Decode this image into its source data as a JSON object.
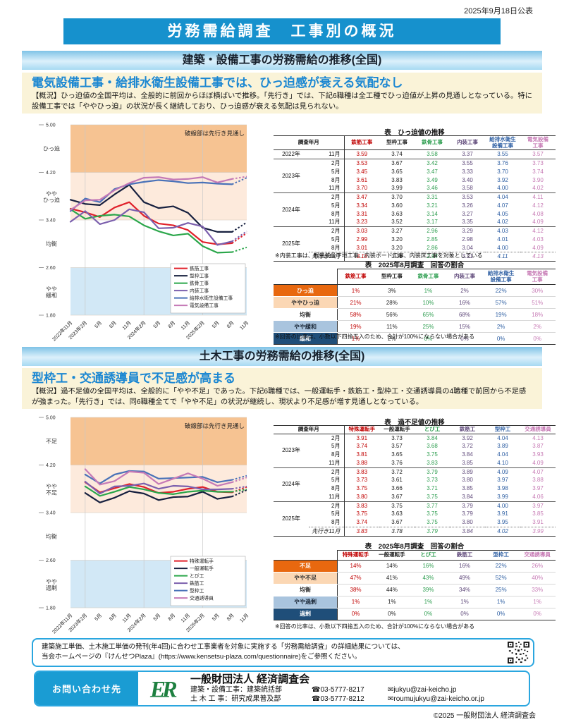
{
  "page": {
    "date_published": "2025年9月18日公表",
    "main_title": "労務需給調査　工事別の概況",
    "copyright": "©2025 一般財団法人 経済調査会"
  },
  "section1": {
    "band_title": "建築・設備工事の労務需給の推移(全国)",
    "headline": "電気設備工事・給排水衛生設備工事では、ひっ迫感が衰える気配なし",
    "overview": "【概況】ひっ迫値の全国平均は、全般的に前回からほぼ横ばいで推移。「先行き」では、下記6職種は全工種でひっ迫値が上昇の見通しとなっている。特に設備工事では「ややひっ迫」の状況が長く継続しており、ひっ迫感が衰える気配は見られない。",
    "columns": [
      {
        "label": "鉄筋工事",
        "color": "#c00000"
      },
      {
        "label": "型枠工事",
        "color": "#222222"
      },
      {
        "label": "鉄骨工事",
        "color": "#2e9e50"
      },
      {
        "label": "内装工事",
        "color": "#5f497a"
      },
      {
        "label": "給排水衛生\n設備工事",
        "color": "#2e5fa3"
      },
      {
        "label": "電気設備\n工事",
        "color": "#c77bb5"
      }
    ],
    "trend_table": {
      "title": "表　ひっ迫値の推移",
      "header_left": "調査年月",
      "groups": [
        {
          "year": "2022年",
          "rows": [
            {
              "month": "11月",
              "values": [
                "3.59",
                "3.74",
                "3.58",
                "3.37",
                "3.55",
                "3.57"
              ]
            }
          ]
        },
        {
          "year": "2023年",
          "rows": [
            {
              "month": "2月",
              "values": [
                "3.53",
                "3.67",
                "3.42",
                "3.55",
                "3.76",
                "3.73"
              ]
            },
            {
              "month": "5月",
              "values": [
                "3.45",
                "3.65",
                "3.47",
                "3.33",
                "3.70",
                "3.74"
              ]
            },
            {
              "month": "8月",
              "values": [
                "3.61",
                "3.83",
                "3.49",
                "3.40",
                "3.92",
                "3.90"
              ]
            },
            {
              "month": "11月",
              "values": [
                "3.70",
                "3.99",
                "3.46",
                "3.58",
                "4.00",
                "4.02"
              ]
            }
          ]
        },
        {
          "year": "2024年",
          "rows": [
            {
              "month": "2月",
              "values": [
                "3.47",
                "3.70",
                "3.31",
                "3.53",
                "4.04",
                "4.11"
              ]
            },
            {
              "month": "5月",
              "values": [
                "3.34",
                "3.60",
                "3.21",
                "3.26",
                "4.07",
                "4.12"
              ]
            },
            {
              "month": "8月",
              "values": [
                "3.31",
                "3.63",
                "3.14",
                "3.27",
                "4.05",
                "4.08"
              ]
            },
            {
              "month": "11月",
              "values": [
                "3.23",
                "3.52",
                "3.17",
                "3.35",
                "4.02",
                "4.09"
              ]
            }
          ]
        },
        {
          "year": "2025年",
          "rows": [
            {
              "month": "2月",
              "values": [
                "3.03",
                "3.27",
                "2.96",
                "3.29",
                "4.03",
                "4.12"
              ]
            },
            {
              "month": "5月",
              "values": [
                "2.99",
                "3.20",
                "2.85",
                "2.98",
                "4.01",
                "4.03"
              ]
            },
            {
              "month": "8月",
              "values": [
                "3.01",
                "3.20",
                "2.86",
                "3.04",
                "4.00",
                "4.09"
              ]
            },
            {
              "month": "先行き11月",
              "forecast": true,
              "values": [
                "3.18",
                "3.36",
                "2.94",
                "3.21",
                "4.11",
                "4.13"
              ]
            }
          ]
        }
      ]
    },
    "trend_note": "※内装工事は、軽量鉄骨下地工事、内装ボード工事、内装床工事を対象としている",
    "share_table": {
      "title": "表　2025年8月調査　回答の割合",
      "rows": [
        {
          "label": "ひっ迫",
          "tone": "hot",
          "values": [
            "1%",
            "3%",
            "1%",
            "2%",
            "22%",
            "30%"
          ]
        },
        {
          "label": "ややひっ迫",
          "tone": "warm",
          "values": [
            "21%",
            "28%",
            "10%",
            "16%",
            "57%",
            "51%"
          ]
        },
        {
          "label": "均衡",
          "tone": "neutral",
          "values": [
            "58%",
            "56%",
            "65%",
            "68%",
            "19%",
            "18%"
          ]
        },
        {
          "label": "やや緩和",
          "tone": "cool",
          "values": [
            "19%",
            "11%",
            "25%",
            "15%",
            "2%",
            "2%"
          ]
        },
        {
          "label": "緩和",
          "tone": "cold",
          "values": [
            "1%",
            "2%",
            "0%",
            "0%",
            "0%",
            "0%"
          ]
        }
      ]
    },
    "share_note": "※回答の比率は、小数以下四捨五入のため、合計が100%にならない場合がある"
  },
  "section2": {
    "band_title": "土木工事の労務需給の推移(全国)",
    "headline": "型枠工・交通誘導員で不足感が高まる",
    "overview": "【概況】過不足値の全国平均は、全般的に「やや不足」であった。下記6職種では、一般運転手・鉄筋工・型枠工・交通誘導員の4職種で前回から不足感が強まった。「先行き」では、同6職種全てで「やや不足」の状況が継続し、現状より不足感が増す見通しとなっている。",
    "columns": [
      {
        "label": "特殊運転手",
        "color": "#c00000"
      },
      {
        "label": "一般運転手",
        "color": "#222222"
      },
      {
        "label": "とび工",
        "color": "#2e9e50"
      },
      {
        "label": "鉄筋工",
        "color": "#5f497a"
      },
      {
        "label": "型枠工",
        "color": "#2e5fa3"
      },
      {
        "label": "交通誘導員",
        "color": "#c77bb5"
      }
    ],
    "trend_table": {
      "title": "表　過不足値の推移",
      "header_left": "調査年月",
      "groups": [
        {
          "year": "2023年",
          "rows": [
            {
              "month": "2月",
              "values": [
                "3.91",
                "3.73",
                "3.84",
                "3.92",
                "4.04",
                "4.13"
              ]
            },
            {
              "month": "5月",
              "values": [
                "3.74",
                "3.57",
                "3.68",
                "3.72",
                "3.89",
                "3.87"
              ]
            },
            {
              "month": "8月",
              "values": [
                "3.81",
                "3.65",
                "3.75",
                "3.84",
                "4.04",
                "3.93"
              ]
            },
            {
              "month": "11月",
              "values": [
                "3.88",
                "3.76",
                "3.83",
                "3.85",
                "4.10",
                "4.09"
              ]
            }
          ]
        },
        {
          "year": "2024年",
          "rows": [
            {
              "month": "2月",
              "values": [
                "3.83",
                "3.72",
                "3.79",
                "3.89",
                "4.09",
                "4.07"
              ]
            },
            {
              "month": "5月",
              "values": [
                "3.73",
                "3.61",
                "3.73",
                "3.80",
                "3.97",
                "3.88"
              ]
            },
            {
              "month": "8月",
              "values": [
                "3.75",
                "3.66",
                "3.71",
                "3.85",
                "3.98",
                "3.97"
              ]
            },
            {
              "month": "11月",
              "values": [
                "3.80",
                "3.67",
                "3.75",
                "3.84",
                "3.99",
                "4.06"
              ]
            }
          ]
        },
        {
          "year": "2025年",
          "rows": [
            {
              "month": "2月",
              "values": [
                "3.83",
                "3.75",
                "3.77",
                "3.79",
                "4.00",
                "3.97"
              ]
            },
            {
              "month": "5月",
              "values": [
                "3.75",
                "3.63",
                "3.75",
                "3.79",
                "3.91",
                "3.85"
              ]
            },
            {
              "month": "8月",
              "values": [
                "3.74",
                "3.67",
                "3.75",
                "3.80",
                "3.95",
                "3.91"
              ]
            },
            {
              "month": "先行き11月",
              "forecast": true,
              "values": [
                "3.83",
                "3.78",
                "3.79",
                "3.84",
                "4.02",
                "3.99"
              ]
            }
          ]
        }
      ]
    },
    "share_table": {
      "title": "表　2025年8月調査　回答の割合",
      "rows": [
        {
          "label": "不足",
          "tone": "hot",
          "values": [
            "14%",
            "14%",
            "16%",
            "16%",
            "22%",
            "26%"
          ]
        },
        {
          "label": "やや不足",
          "tone": "warm",
          "values": [
            "47%",
            "41%",
            "43%",
            "49%",
            "52%",
            "40%"
          ]
        },
        {
          "label": "均衡",
          "tone": "neutral",
          "values": [
            "38%",
            "44%",
            "39%",
            "34%",
            "25%",
            "33%"
          ]
        },
        {
          "label": "やや過剰",
          "tone": "cool",
          "values": [
            "1%",
            "1%",
            "1%",
            "1%",
            "1%",
            "1%"
          ]
        },
        {
          "label": "過剰",
          "tone": "cold",
          "values": [
            "0%",
            "0%",
            "0%",
            "0%",
            "0%",
            "0%"
          ]
        }
      ]
    },
    "share_note": "※回答の比率は、小数以下四捨五入のため、合計が100%にならない場合がある"
  },
  "chart_data": [
    {
      "type": "line",
      "annotation": "破線部は先行き見通し",
      "x": [
        "2022年11月",
        "2023年2月",
        "5月",
        "8月",
        "11月",
        "2024年2月",
        "5月",
        "8月",
        "11月",
        "2025年2月",
        "5月",
        "8月",
        "11月"
      ],
      "ylim": [
        1.8,
        5.0
      ],
      "yticks": [
        "5.00",
        "4.20",
        "3.40",
        "2.60",
        "1.80"
      ],
      "grid_x": [
        1,
        5,
        9
      ],
      "zones": [
        {
          "from": 4.2,
          "to": 5.0,
          "color": "#f6c392",
          "label": "ひっ迫"
        },
        {
          "from": 3.4,
          "to": 4.2,
          "color": "#fdeadc",
          "label": "やや\nひっ迫"
        },
        {
          "from": 2.6,
          "to": 3.4,
          "color": "#ffffff",
          "label": "均衡"
        },
        {
          "from": 1.8,
          "to": 2.6,
          "color": "#d2e8f6",
          "label": "やや\n緩和"
        }
      ],
      "forecast_last_point": true,
      "legend_position": "lower-right",
      "series": [
        {
          "name": "鉄筋工事",
          "color": "#e0202a",
          "values": [
            3.59,
            3.53,
            3.45,
            3.61,
            3.7,
            3.47,
            3.34,
            3.31,
            3.23,
            3.03,
            2.99,
            3.01,
            3.18
          ]
        },
        {
          "name": "型枠工事",
          "color": "#17203f",
          "values": [
            3.74,
            3.67,
            3.65,
            3.83,
            3.99,
            3.7,
            3.6,
            3.63,
            3.52,
            3.27,
            3.2,
            3.2,
            3.36
          ]
        },
        {
          "name": "鉄骨工事",
          "color": "#2aa64a",
          "values": [
            3.58,
            3.42,
            3.47,
            3.49,
            3.46,
            3.31,
            3.21,
            3.14,
            3.17,
            2.96,
            2.85,
            2.86,
            2.94
          ]
        },
        {
          "name": "内装工事",
          "color": "#7b5fad",
          "values": [
            3.37,
            3.55,
            3.33,
            3.4,
            3.58,
            3.53,
            3.26,
            3.27,
            3.35,
            3.29,
            2.98,
            3.04,
            3.21
          ]
        },
        {
          "name": "給排水衛生設備工事",
          "color": "#4a72b8",
          "values": [
            3.55,
            3.76,
            3.7,
            3.92,
            4.0,
            4.04,
            4.07,
            4.05,
            4.02,
            4.03,
            4.01,
            4.0,
            4.11
          ]
        },
        {
          "name": "電気設備工事",
          "color": "#c579b6",
          "values": [
            3.57,
            3.73,
            3.74,
            3.9,
            4.02,
            4.11,
            4.12,
            4.08,
            4.09,
            4.12,
            4.03,
            4.09,
            4.13
          ]
        }
      ]
    },
    {
      "type": "line",
      "annotation": "破線部は先行き見通し",
      "x": [
        "2022年11月",
        "2023年2月",
        "5月",
        "8月",
        "11月",
        "2024年2月",
        "5月",
        "8月",
        "11月",
        "2025年2月",
        "5月",
        "8月",
        "11月"
      ],
      "ylim": [
        1.8,
        5.0
      ],
      "yticks": [
        "5.00",
        "4.20",
        "3.40",
        "2.60",
        "1.80"
      ],
      "grid_x": [
        1,
        5,
        9
      ],
      "zones": [
        {
          "from": 4.2,
          "to": 5.0,
          "color": "#f6c392",
          "label": "不足"
        },
        {
          "from": 3.4,
          "to": 4.2,
          "color": "#fdeadc",
          "label": "やや\n不足"
        },
        {
          "from": 2.6,
          "to": 3.4,
          "color": "#ffffff",
          "label": "均衡"
        },
        {
          "from": 1.8,
          "to": 2.6,
          "color": "#d2e8f6",
          "label": "やや\n過剰"
        }
      ],
      "forecast_last_point": true,
      "legend_position": "lower-right",
      "series": [
        {
          "name": "特殊運転手",
          "color": "#e0202a",
          "values": [
            null,
            3.91,
            3.74,
            3.81,
            3.88,
            3.83,
            3.73,
            3.75,
            3.8,
            3.83,
            3.75,
            3.74,
            3.83
          ]
        },
        {
          "name": "一般運転手",
          "color": "#17203f",
          "values": [
            null,
            3.73,
            3.57,
            3.65,
            3.76,
            3.72,
            3.61,
            3.66,
            3.67,
            3.75,
            3.63,
            3.67,
            3.78
          ]
        },
        {
          "name": "とび工",
          "color": "#2aa64a",
          "values": [
            null,
            3.84,
            3.68,
            3.75,
            3.83,
            3.79,
            3.73,
            3.71,
            3.75,
            3.77,
            3.75,
            3.75,
            3.79
          ]
        },
        {
          "name": "鉄筋工",
          "color": "#7b5fad",
          "values": [
            null,
            3.92,
            3.72,
            3.84,
            3.85,
            3.89,
            3.8,
            3.85,
            3.84,
            3.79,
            3.79,
            3.8,
            3.84
          ]
        },
        {
          "name": "型枠工",
          "color": "#4a72b8",
          "values": [
            null,
            4.04,
            3.89,
            4.04,
            4.1,
            4.09,
            3.97,
            3.98,
            3.99,
            4.0,
            3.91,
            3.95,
            4.02
          ]
        },
        {
          "name": "交通誘導員",
          "color": "#c579b6",
          "values": [
            null,
            4.13,
            3.87,
            3.93,
            4.09,
            4.07,
            3.88,
            3.97,
            4.06,
            3.97,
            3.85,
            3.91,
            3.99
          ]
        }
      ]
    }
  ],
  "footer": {
    "info_line1": "建築施工単価、土木施工単価の発刊(年4回)に合わせ工事業者を対象に実施する「労務需給調査」の詳細結果については、",
    "info_line2": "当会ホームページの『けんせつPlaza』(https://www.kensetsu-plaza.com/questionnaire)をご参照ください。",
    "contact_label": "お問い合わせ先",
    "logo_text": "ER",
    "org_name": "一般財団法人 経済調査会",
    "phone_icon": "☎",
    "mail_icon": "✉",
    "contacts": [
      {
        "dept": "建築・設備工事：建築統括部",
        "phone": "03-5777-8217",
        "email": "jukyu@zai-keicho.jp"
      },
      {
        "dept": "土 木 工 事：研究成果普及部",
        "phone": "03-5777-8212",
        "email": "roumujukyu@zai-keicho.or.jp"
      }
    ]
  }
}
